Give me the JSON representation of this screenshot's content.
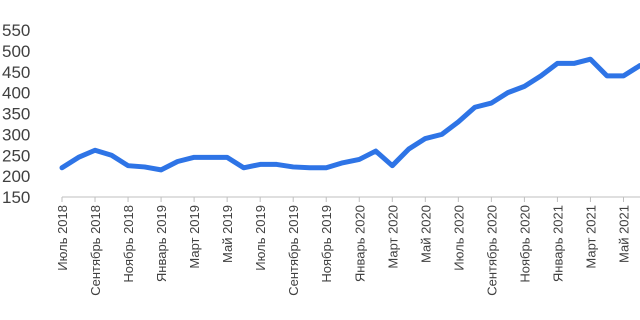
{
  "chart_data": {
    "type": "line",
    "x": [
      "2018-07",
      "2018-08",
      "2018-09",
      "2018-10",
      "2018-11",
      "2018-12",
      "2019-01",
      "2019-02",
      "2019-03",
      "2019-04",
      "2019-05",
      "2019-06",
      "2019-07",
      "2019-08",
      "2019-09",
      "2019-10",
      "2019-11",
      "2019-12",
      "2020-01",
      "2020-02",
      "2020-03",
      "2020-04",
      "2020-05",
      "2020-06",
      "2020-07",
      "2020-08",
      "2020-09",
      "2020-10",
      "2020-11",
      "2020-12",
      "2021-01",
      "2021-02",
      "2021-03",
      "2021-04",
      "2021-05",
      "2021-06"
    ],
    "series": [
      {
        "color": "#2e74e6",
        "values": [
          220,
          245,
          262,
          250,
          225,
          222,
          215,
          235,
          245,
          245,
          245,
          220,
          228,
          228,
          222,
          220,
          220,
          232,
          240,
          260,
          225,
          265,
          290,
          300,
          330,
          365,
          375,
          400,
          415,
          440,
          470,
          470,
          480,
          440,
          440,
          465
        ]
      }
    ],
    "xlim": [
      "2018-07",
      "2021-06"
    ],
    "xticks": [
      {
        "value": "2018-07",
        "label": "Июль 2018"
      },
      {
        "value": "2018-09",
        "label": "Сентябрь 2018"
      },
      {
        "value": "2018-11",
        "label": "Ноябрь 2018"
      },
      {
        "value": "2019-01",
        "label": "Январь 2019"
      },
      {
        "value": "2019-03",
        "label": "Март 2019"
      },
      {
        "value": "2019-05",
        "label": "Май 2019"
      },
      {
        "value": "2019-07",
        "label": "Июль 2019"
      },
      {
        "value": "2019-09",
        "label": "Сентябрь 2019"
      },
      {
        "value": "2019-11",
        "label": "Ноябрь 2019"
      },
      {
        "value": "2020-01",
        "label": "Январь 2020"
      },
      {
        "value": "2020-03",
        "label": "Март 2020"
      },
      {
        "value": "2020-05",
        "label": "Май 2020"
      },
      {
        "value": "2020-07",
        "label": "Июль 2020"
      },
      {
        "value": "2020-09",
        "label": "Сентябрь 2020"
      },
      {
        "value": "2020-11",
        "label": "Ноябрь 2020"
      },
      {
        "value": "2021-01",
        "label": "Январь 2021"
      },
      {
        "value": "2021-03",
        "label": "Март 2021"
      },
      {
        "value": "2021-05",
        "label": "Май 2021"
      }
    ],
    "ylim": [
      150,
      550
    ],
    "yticks": [
      150,
      200,
      250,
      300,
      350,
      400,
      450,
      500,
      550
    ]
  }
}
